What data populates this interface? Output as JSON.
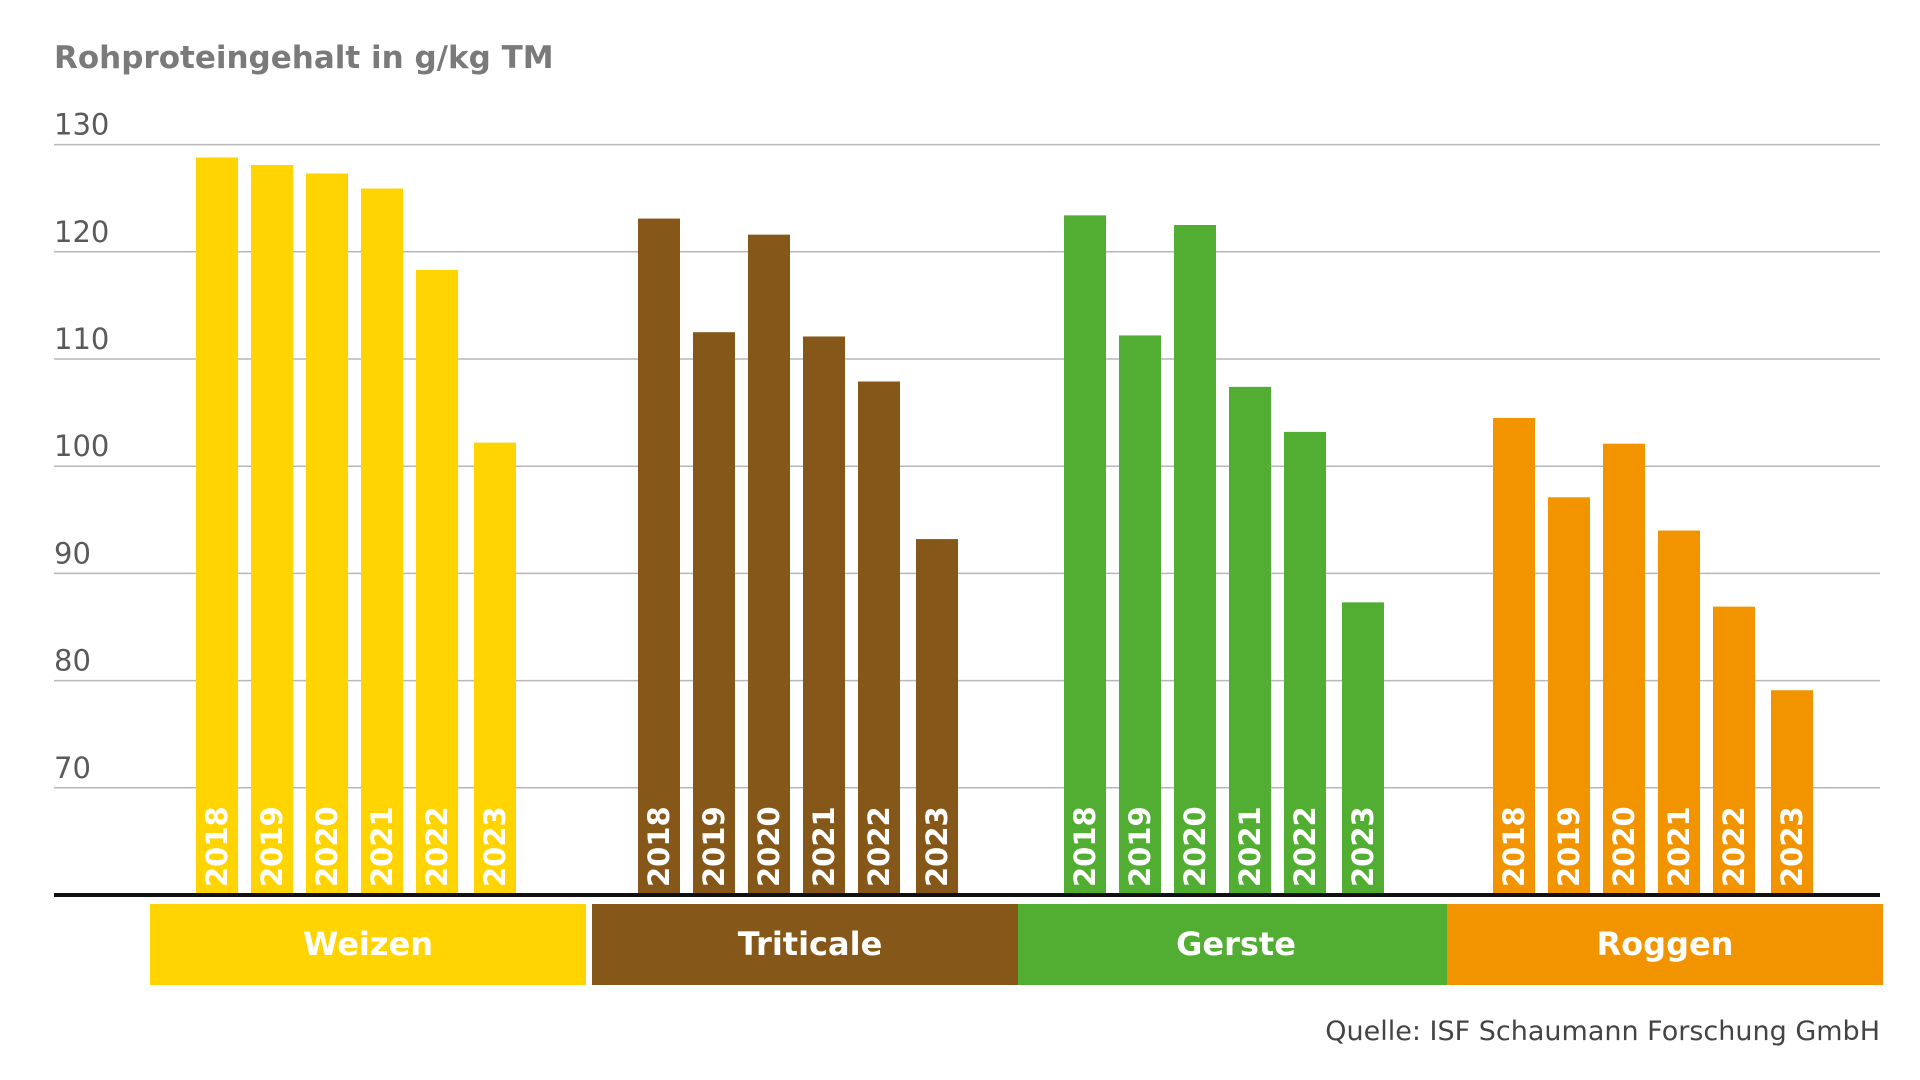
{
  "chart_data": {
    "type": "bar",
    "ylabel": "Rohproteingehalt in g/kg TM",
    "ylim": [
      60,
      130
    ],
    "yticks": [
      70,
      80,
      90,
      100,
      110,
      120,
      130
    ],
    "grid": true,
    "source": "Quelle: ISF Schaumann Forschung GmbH",
    "groups": [
      {
        "name": "Weizen",
        "color": "#FFD400",
        "bars": [
          {
            "label": "2018",
            "value": 128.8
          },
          {
            "label": "2019",
            "value": 128.1
          },
          {
            "label": "2020",
            "value": 127.3
          },
          {
            "label": "2021",
            "value": 125.9
          },
          {
            "label": "2022",
            "value": 118.3
          },
          {
            "label": "2023",
            "value": 102.2
          }
        ]
      },
      {
        "name": "Triticale",
        "color": "#855718",
        "bars": [
          {
            "label": "2018",
            "value": 123.1
          },
          {
            "label": "2019",
            "value": 112.5
          },
          {
            "label": "2020",
            "value": 121.6
          },
          {
            "label": "2021",
            "value": 112.1
          },
          {
            "label": "2022",
            "value": 107.9
          },
          {
            "label": "2023",
            "value": 93.2
          }
        ]
      },
      {
        "name": "Gerste",
        "color": "#52AE32",
        "bars": [
          {
            "label": "2018",
            "value": 123.4
          },
          {
            "label": "2019",
            "value": 112.2
          },
          {
            "label": "2020",
            "value": 122.5
          },
          {
            "label": "2021",
            "value": 107.4
          },
          {
            "label": "2022",
            "value": 103.2
          },
          {
            "label": "2023",
            "value": 87.3
          }
        ]
      },
      {
        "name": "Roggen",
        "color": "#F29400",
        "bars": [
          {
            "label": "2018",
            "value": 104.5
          },
          {
            "label": "2019",
            "value": 97.1
          },
          {
            "label": "2020",
            "value": 102.1
          },
          {
            "label": "2021",
            "value": 94.0
          },
          {
            "label": "2022",
            "value": 86.9
          },
          {
            "label": "2023",
            "value": 79.1
          }
        ]
      }
    ]
  }
}
